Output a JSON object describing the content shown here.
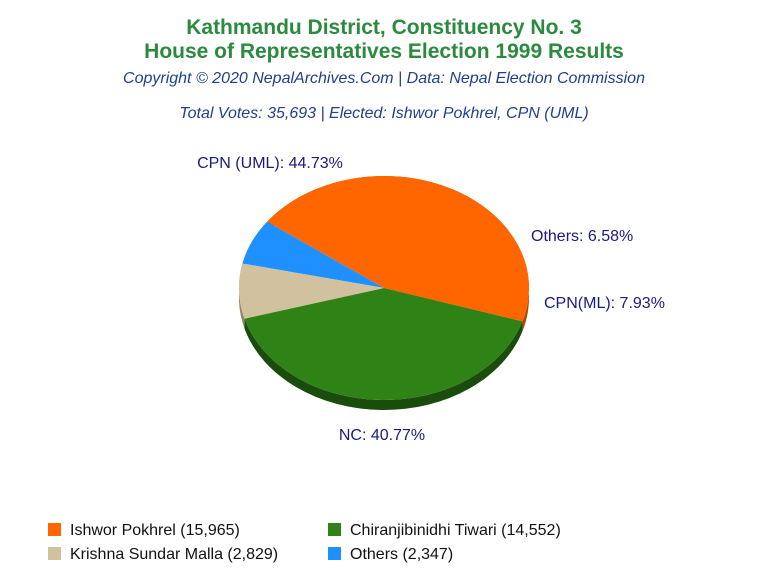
{
  "chart_data": {
    "type": "pie",
    "title": "Kathmandu District, Constituency No. 3",
    "title2": "House of Representatives Election 1999 Results",
    "subtitle": "Copyright © 2020 NepalArchives.Com | Data: Nepal Election Commission",
    "summary": "Total Votes: 35,693 | Elected: Ishwor Pokhrel, CPN (UML)",
    "slices": [
      {
        "label": "CPN (UML): 44.73%",
        "legend": "Ishwor Pokhrel (15,965)",
        "value": 15965,
        "percent": 44.73,
        "color": "#ff6600",
        "dark": "#b34700"
      },
      {
        "label": "Others: 6.58%",
        "legend": "Others (2,347)",
        "value": 2347,
        "percent": 6.58,
        "color": "#1e90ff",
        "dark": "#1565b3"
      },
      {
        "label": "CPN(ML): 7.93%",
        "legend": "Krishna Sundar Malla (2,829)",
        "value": 2829,
        "percent": 7.93,
        "color": "#d2c19e",
        "dark": "#958868"
      },
      {
        "label": "NC: 40.77%",
        "legend": "Chiranjibinidhi Tiwari (14,552)",
        "value": 14552,
        "percent": 40.77,
        "color": "#2e8216",
        "dark": "#1a4c0c"
      }
    ],
    "legend_position": "bottom"
  }
}
